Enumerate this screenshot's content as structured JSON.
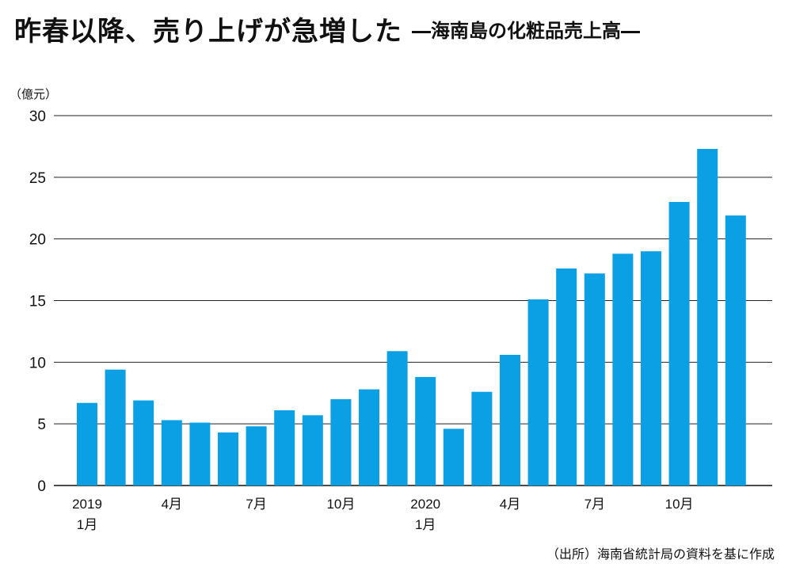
{
  "header": {
    "title": "昨春以降、売り上げが急増した",
    "subtitle": "―海南島の化粧品売上高―"
  },
  "unit_label": "（億元）",
  "source": "（出所）海南省統計局の資料を基に作成",
  "colors": {
    "bar": "#0ba0e4",
    "grid": "#222222",
    "axis": "#111111"
  },
  "chart_data": {
    "type": "bar",
    "ylim": [
      0,
      30
    ],
    "yticks": [
      0,
      5,
      10,
      15,
      20,
      25,
      30
    ],
    "grid": true,
    "x_tick_labels": [
      {
        "index": 0,
        "lines": [
          "2019",
          "1月"
        ]
      },
      {
        "index": 3,
        "lines": [
          "4月"
        ]
      },
      {
        "index": 6,
        "lines": [
          "7月"
        ]
      },
      {
        "index": 9,
        "lines": [
          "10月"
        ]
      },
      {
        "index": 12,
        "lines": [
          "2020",
          "1月"
        ]
      },
      {
        "index": 15,
        "lines": [
          "4月"
        ]
      },
      {
        "index": 18,
        "lines": [
          "7月"
        ]
      },
      {
        "index": 21,
        "lines": [
          "10月"
        ]
      }
    ],
    "categories": [
      "2019-01",
      "2019-02",
      "2019-03",
      "2019-04",
      "2019-05",
      "2019-06",
      "2019-07",
      "2019-08",
      "2019-09",
      "2019-10",
      "2019-11",
      "2019-12",
      "2020-01",
      "2020-02",
      "2020-03",
      "2020-04",
      "2020-05",
      "2020-06",
      "2020-07",
      "2020-08",
      "2020-09",
      "2020-10",
      "2020-11",
      "2020-12"
    ],
    "values": [
      6.7,
      9.4,
      6.9,
      5.3,
      5.1,
      4.3,
      4.8,
      6.1,
      5.7,
      7.0,
      7.8,
      10.9,
      8.8,
      4.6,
      7.6,
      10.6,
      15.1,
      17.6,
      17.2,
      18.8,
      19.0,
      23.0,
      27.3,
      21.9
    ]
  }
}
